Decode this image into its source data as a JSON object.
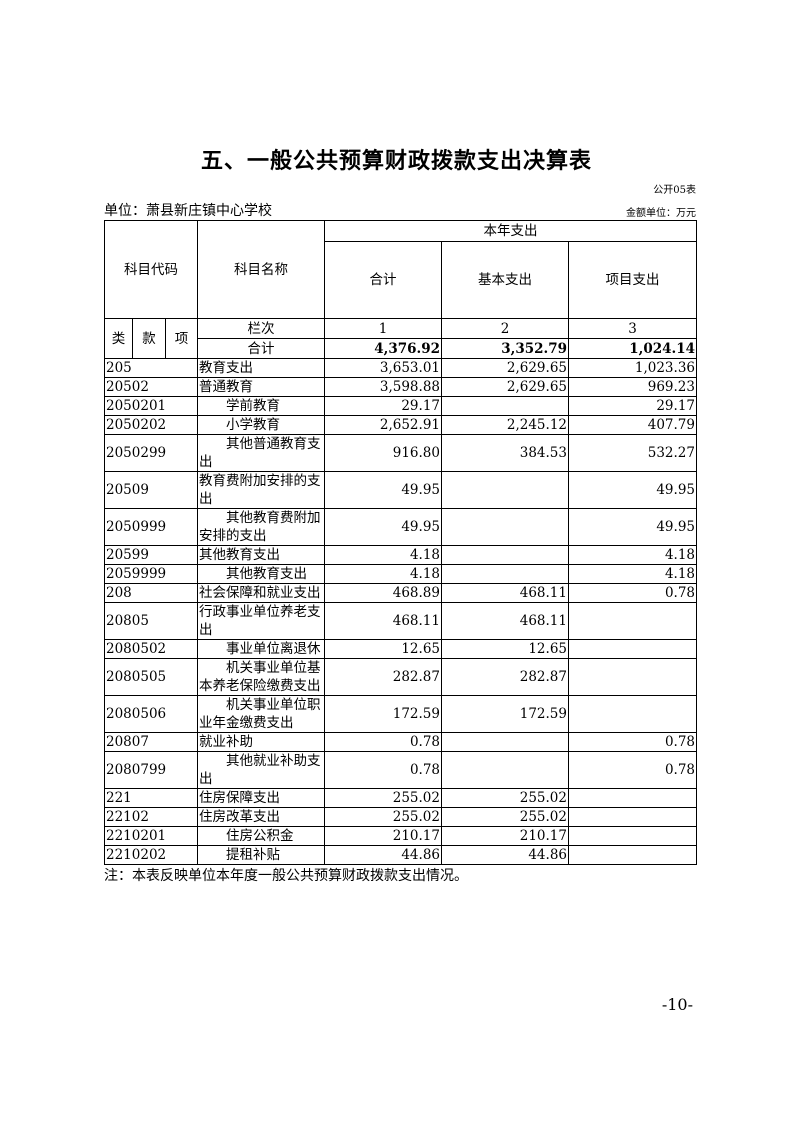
{
  "title": "五、一般公共预算财政拨款支出决算表",
  "form_no": "公开05表",
  "unit": "单位：萧县新庄镇中心学校",
  "money_unit": "金额单位：万元",
  "header": {
    "code": "科目代码",
    "name": "科目名称",
    "year_spend": "本年支出",
    "total": "合计",
    "basic": "基本支出",
    "project": "项目支出",
    "lei": "类",
    "kuan": "款",
    "xiang": "项",
    "column_no": "栏次",
    "col1": "1",
    "col2": "2",
    "col3": "3",
    "sum_label": "合计",
    "sum_total": "4,376.92",
    "sum_basic": "3,352.79",
    "sum_project": "1,024.14"
  },
  "rows": [
    {
      "code": "205",
      "name": "教育支出",
      "total": "3,653.01",
      "basic": "2,629.65",
      "project": "1,023.36",
      "indent": false
    },
    {
      "code": "20502",
      "name": "普通教育",
      "total": "3,598.88",
      "basic": "2,629.65",
      "project": "969.23",
      "indent": false
    },
    {
      "code": "2050201",
      "name": "学前教育",
      "total": "29.17",
      "basic": "",
      "project": "29.17",
      "indent": true
    },
    {
      "code": "2050202",
      "name": "小学教育",
      "total": "2,652.91",
      "basic": "2,245.12",
      "project": "407.79",
      "indent": true
    },
    {
      "code": "2050299",
      "name": "其他普通教育支出",
      "total": "916.80",
      "basic": "384.53",
      "project": "532.27",
      "indent": true
    },
    {
      "code": "20509",
      "name": "教育费附加安排的支出",
      "total": "49.95",
      "basic": "",
      "project": "49.95",
      "indent": false
    },
    {
      "code": "2050999",
      "name": "其他教育费附加安排的支出",
      "total": "49.95",
      "basic": "",
      "project": "49.95",
      "indent": true
    },
    {
      "code": "20599",
      "name": "其他教育支出",
      "total": "4.18",
      "basic": "",
      "project": "4.18",
      "indent": false
    },
    {
      "code": "2059999",
      "name": "其他教育支出",
      "total": "4.18",
      "basic": "",
      "project": "4.18",
      "indent": true
    },
    {
      "code": "208",
      "name": "社会保障和就业支出",
      "total": "468.89",
      "basic": "468.11",
      "project": "0.78",
      "indent": false
    },
    {
      "code": "20805",
      "name": "行政事业单位养老支出",
      "total": "468.11",
      "basic": "468.11",
      "project": "",
      "indent": false
    },
    {
      "code": "2080502",
      "name": "事业单位离退休",
      "total": "12.65",
      "basic": "12.65",
      "project": "",
      "indent": true
    },
    {
      "code": "2080505",
      "name": "机关事业单位基本养老保险缴费支出",
      "total": "282.87",
      "basic": "282.87",
      "project": "",
      "indent": true
    },
    {
      "code": "2080506",
      "name": "机关事业单位职业年金缴费支出",
      "total": "172.59",
      "basic": "172.59",
      "project": "",
      "indent": true
    },
    {
      "code": "20807",
      "name": "就业补助",
      "total": "0.78",
      "basic": "",
      "project": "0.78",
      "indent": false
    },
    {
      "code": "2080799",
      "name": "其他就业补助支出",
      "total": "0.78",
      "basic": "",
      "project": "0.78",
      "indent": true
    },
    {
      "code": "221",
      "name": "住房保障支出",
      "total": "255.02",
      "basic": "255.02",
      "project": "",
      "indent": false
    },
    {
      "code": "22102",
      "name": "住房改革支出",
      "total": "255.02",
      "basic": "255.02",
      "project": "",
      "indent": false
    },
    {
      "code": "2210201",
      "name": "住房公积金",
      "total": "210.17",
      "basic": "210.17",
      "project": "",
      "indent": true
    },
    {
      "code": "2210202",
      "name": "提租补贴",
      "total": "44.86",
      "basic": "44.86",
      "project": "",
      "indent": true
    }
  ],
  "note": "注：本表反映单位本年度一般公共预算财政拨款支出情况。",
  "page_number": "-10-"
}
